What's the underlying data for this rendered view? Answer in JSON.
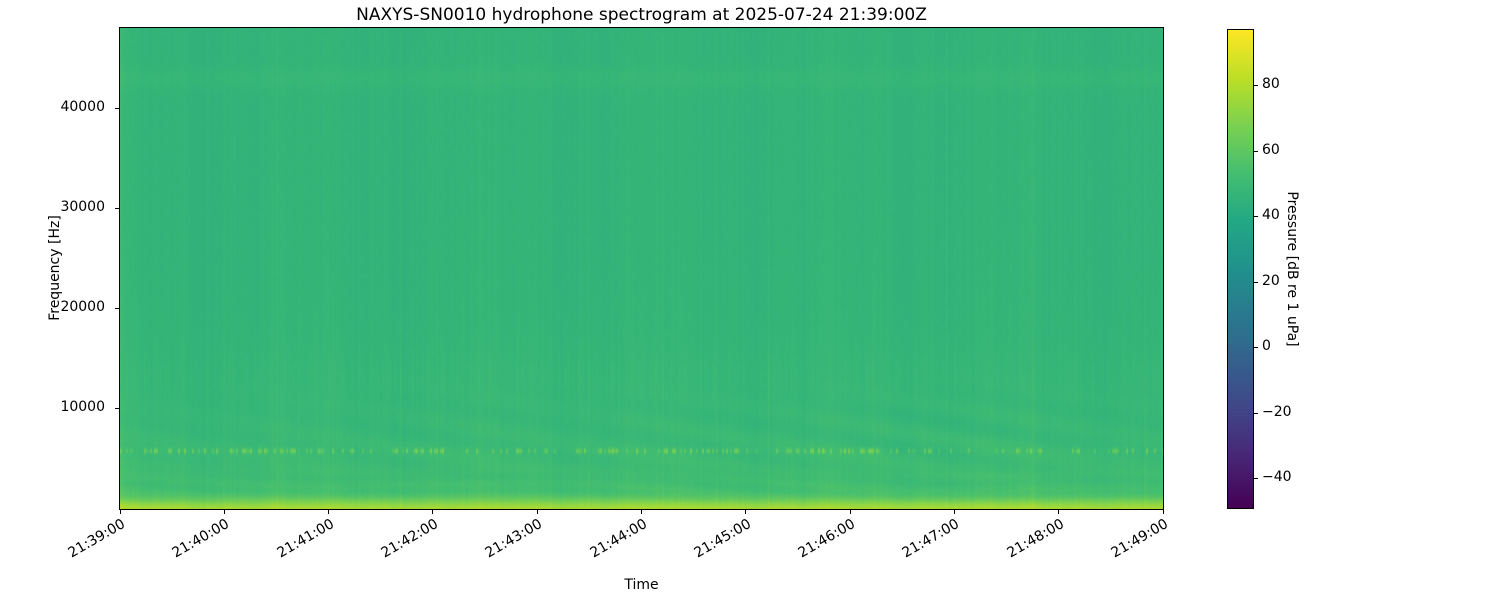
{
  "chart_data": {
    "type": "heatmap",
    "subtype": "spectrogram",
    "title": "NAXYS-SN0010 hydrophone spectrogram at 2025-07-24 21:39:00Z",
    "xlabel": "Time",
    "ylabel": "Frequency [Hz]",
    "x_ticks": [
      "21:39:00",
      "21:40:00",
      "21:41:00",
      "21:42:00",
      "21:43:00",
      "21:44:00",
      "21:45:00",
      "21:46:00",
      "21:47:00",
      "21:48:00",
      "21:49:00"
    ],
    "x_start": "21:39:00",
    "x_end": "21:49:00",
    "y_ticks": [
      10000,
      20000,
      30000,
      40000
    ],
    "y_tick_labels": [
      "10000",
      "20000",
      "30000",
      "40000"
    ],
    "ylim": [
      0,
      48000
    ],
    "grid": false,
    "colorbar": {
      "label": "Pressure [dB re 1 uPa]",
      "ticks": [
        80,
        60,
        40,
        20,
        0,
        -20,
        -40
      ],
      "tick_labels": [
        "80",
        "60",
        "40",
        "20",
        "0",
        "−20",
        "−40"
      ],
      "vmin": -49,
      "vmax": 97,
      "colormap": "viridis",
      "position": "right"
    },
    "viridis_stops": [
      [
        68,
        1,
        84
      ],
      [
        72,
        36,
        117
      ],
      [
        65,
        68,
        135
      ],
      [
        53,
        95,
        141
      ],
      [
        42,
        120,
        142
      ],
      [
        33,
        145,
        140
      ],
      [
        34,
        168,
        132
      ],
      [
        68,
        190,
        112
      ],
      [
        122,
        209,
        81
      ],
      [
        189,
        223,
        38
      ],
      [
        253,
        231,
        37
      ]
    ],
    "content_features": {
      "background_level_db": 46.3,
      "low_freq_broadband_boost_db": 8.5,
      "low_freq_decay_hz": 6500,
      "surface_band": {
        "peak_extra_db": 22,
        "sigma_hz": 950,
        "description": "bright yellow-green band at lowest frequencies"
      },
      "tonal_line": {
        "freq_hz": 5750,
        "sigma_hz": 270,
        "max_extra_db": 18,
        "character": "intermittent dashed tonal"
      },
      "high_band": {
        "freq_hz": 43000,
        "extra_db": 1.6,
        "sigma_hz": 1100,
        "description": "faint lighter horizontal band"
      },
      "mid_stripe_band": {
        "center_hz": 13200,
        "sigma_hz": 2800,
        "description": "patchy brighter vertical stripes 10-16 kHz"
      },
      "diagonal_fringes": {
        "band_center_hz": 6800,
        "band_sigma_hz": 4300,
        "description": "faint descending interference fringes, strongest near 21:46-21:48"
      },
      "texture": "fine vertical time-variability striping across all frequencies"
    }
  }
}
